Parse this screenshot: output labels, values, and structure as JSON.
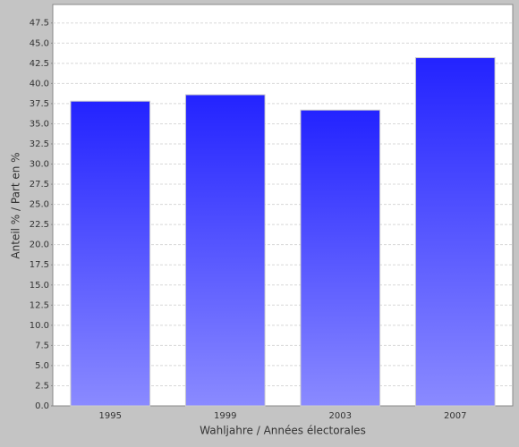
{
  "chart_data": {
    "type": "bar",
    "x_label": "Wahljahre / Années électorales",
    "y_label": "Anteil % / Part en %",
    "categories": [
      "1995",
      "1999",
      "2003",
      "2007"
    ],
    "values": [
      37.8,
      38.6,
      36.7,
      43.2
    ],
    "color": "#2222ff",
    "ylim": [
      0,
      49.8
    ],
    "yticks": [
      {
        "value": 0,
        "label": "0.0"
      },
      2.5,
      {
        "value": 5,
        "label": "5.0"
      },
      7.5,
      {
        "value": 10,
        "label": "10.0"
      },
      12.5,
      {
        "value": 15,
        "label": "15.0"
      },
      17.5,
      {
        "value": 20,
        "label": "20.0"
      },
      22.5,
      {
        "value": 25,
        "label": "25.0"
      },
      27.5,
      {
        "value": 30,
        "label": "30.0"
      },
      32.5,
      {
        "value": 35,
        "label": "35.0"
      },
      37.5,
      {
        "value": 40,
        "label": "40.0"
      },
      42.5,
      {
        "value": 45,
        "label": "45.0"
      },
      47.5
    ],
    "grid": true
  }
}
